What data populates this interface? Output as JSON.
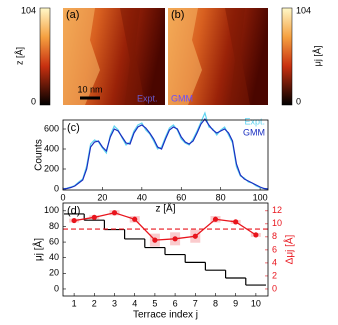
{
  "images": [
    {
      "panel_label": "(a)",
      "label": "Expt.",
      "scale_bar": "10 nm"
    },
    {
      "panel_label": "(b)",
      "label": "GMM"
    }
  ],
  "colorbars": [
    {
      "label": "z [Å]",
      "range": [
        0,
        104
      ]
    },
    {
      "label": "μj [Å]",
      "range": [
        0,
        104
      ]
    }
  ],
  "chart_data": [
    {
      "type": "line",
      "panel_label": "(c)",
      "xlabel": "z [Å]",
      "ylabel": "Counts",
      "xlim": [
        0,
        104
      ],
      "ylim": [
        -10,
        690
      ],
      "xticks": [
        0,
        20,
        40,
        60,
        80,
        100
      ],
      "yticks": [
        0,
        200,
        400,
        600
      ],
      "x": [
        0,
        2,
        4,
        6,
        8,
        10,
        12,
        14,
        16,
        18,
        20,
        22,
        24,
        26,
        28,
        30,
        32,
        34,
        36,
        38,
        40,
        42,
        44,
        46,
        48,
        50,
        52,
        54,
        56,
        58,
        60,
        62,
        64,
        66,
        68,
        70,
        72,
        74,
        76,
        78,
        80,
        82,
        84,
        86,
        88,
        90,
        92,
        94,
        96,
        98,
        100,
        102,
        104
      ],
      "series": [
        {
          "name": "Expt.",
          "color": "#5fd3f0",
          "values": [
            0,
            8,
            20,
            35,
            70,
            100,
            230,
            450,
            490,
            470,
            410,
            360,
            540,
            630,
            590,
            510,
            440,
            470,
            580,
            640,
            660,
            590,
            550,
            480,
            400,
            420,
            520,
            610,
            640,
            590,
            500,
            460,
            440,
            500,
            580,
            670,
            760,
            620,
            600,
            540,
            590,
            620,
            540,
            460,
            220,
            130,
            110,
            70,
            60,
            30,
            15,
            5,
            0
          ]
        },
        {
          "name": "GMM",
          "color": "#1a2fc0",
          "values": [
            0,
            5,
            15,
            30,
            60,
            90,
            200,
            420,
            470,
            480,
            420,
            380,
            520,
            600,
            580,
            520,
            460,
            450,
            560,
            620,
            640,
            610,
            560,
            500,
            420,
            400,
            500,
            590,
            620,
            600,
            520,
            470,
            450,
            480,
            560,
            650,
            700,
            640,
            590,
            560,
            580,
            600,
            560,
            480,
            250,
            140,
            100,
            80,
            60,
            40,
            20,
            5,
            0
          ]
        }
      ]
    },
    {
      "type": "step",
      "panel_label": "(d)",
      "xlabel": "Terrace index j",
      "ylabel": "μj [Å]",
      "y2label": "Δμj [Å]",
      "xlim": [
        0.45,
        10.6
      ],
      "ylim": [
        -9,
        110
      ],
      "y2lim": [
        -1.08,
        13.2
      ],
      "xticks": [
        1,
        2,
        3,
        4,
        5,
        6,
        7,
        8,
        9,
        10
      ],
      "yticks": [
        0,
        20,
        40,
        60,
        80,
        100
      ],
      "y2ticks": [
        0,
        2,
        4,
        6,
        8,
        10,
        12
      ],
      "x": [
        1,
        2,
        3,
        4,
        5,
        6,
        7,
        8,
        9,
        10
      ],
      "series": [
        {
          "color": "#000000",
          "values": [
            96,
            88,
            76,
            64,
            53,
            44,
            34,
            24,
            14,
            5
          ]
        },
        {
          "color": "#e8141c",
          "axis": "y2",
          "values": [
            10.5,
            11.0,
            11.7,
            10.7,
            7.5,
            7.7,
            8.1,
            10.7,
            10.3,
            8.3
          ],
          "errors": [
            0.3,
            0.3,
            0.4,
            0.5,
            1.0,
            1.0,
            1.0,
            0.5,
            0.3,
            0.3
          ]
        }
      ],
      "reference_line": {
        "value": 9.2,
        "axis": "y2",
        "color": "#e8141c"
      }
    }
  ]
}
